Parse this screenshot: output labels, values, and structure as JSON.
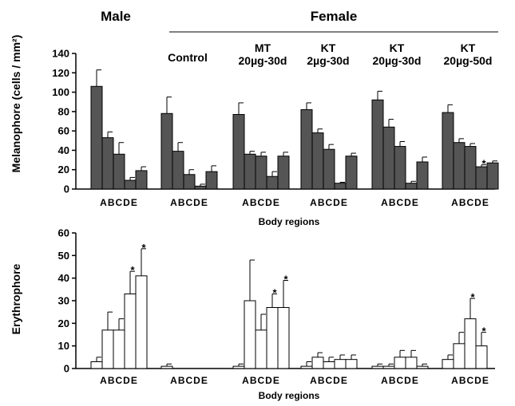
{
  "header": {
    "male": "Male",
    "female": "Female"
  },
  "groups": [
    {
      "id": "male",
      "line1": "",
      "line2": ""
    },
    {
      "id": "control",
      "line1": "Control",
      "line2": ""
    },
    {
      "id": "mt20_30",
      "line1": "MT",
      "line2": "20µg-30d"
    },
    {
      "id": "kt2_30",
      "line1": "KT",
      "line2": "2µg-30d"
    },
    {
      "id": "kt20_30",
      "line1": "KT",
      "line2": "20µg-30d"
    },
    {
      "id": "kt20_50",
      "line1": "KT",
      "line2": "20µg-50d"
    }
  ],
  "colors": {
    "dark_bar": "#555555",
    "light_bar": "#ffffff",
    "axis": "#000000"
  },
  "chart_data": [
    {
      "type": "bar",
      "title": "",
      "ylabel": "Melanophore (cells / mm²)",
      "xlabel": "Body regions",
      "ylim": [
        0,
        140
      ],
      "yticks": [
        0,
        20,
        40,
        60,
        80,
        100,
        120,
        140
      ],
      "categories": [
        "A",
        "B",
        "C",
        "D",
        "E"
      ],
      "bar_color": "#555555",
      "series": [
        {
          "group": "male",
          "values": [
            106,
            53,
            36,
            9,
            19
          ],
          "errors": [
            17,
            6,
            12,
            3,
            4
          ],
          "significant": [
            false,
            false,
            false,
            false,
            false
          ]
        },
        {
          "group": "control",
          "values": [
            78,
            39,
            15,
            3,
            18
          ],
          "errors": [
            17,
            9,
            5,
            2,
            6
          ],
          "significant": [
            false,
            false,
            false,
            false,
            false
          ]
        },
        {
          "group": "mt20_30",
          "values": [
            77,
            36,
            34,
            13,
            34
          ],
          "errors": [
            12,
            3,
            4,
            5,
            4
          ],
          "significant": [
            false,
            false,
            false,
            false,
            false
          ]
        },
        {
          "group": "kt2_30",
          "values": [
            82,
            58,
            41,
            6,
            34
          ],
          "errors": [
            7,
            4,
            5,
            1,
            3
          ],
          "significant": [
            false,
            false,
            false,
            false,
            false
          ]
        },
        {
          "group": "kt20_30",
          "values": [
            92,
            64,
            44,
            6,
            28
          ],
          "errors": [
            9,
            8,
            5,
            2,
            5
          ],
          "significant": [
            false,
            false,
            false,
            false,
            false
          ]
        },
        {
          "group": "kt20_50",
          "values": [
            79,
            48,
            44,
            23,
            27
          ],
          "errors": [
            8,
            4,
            3,
            2,
            2
          ],
          "significant": [
            false,
            false,
            false,
            true,
            false
          ]
        }
      ]
    },
    {
      "type": "bar",
      "title": "",
      "ylabel": "Erythrophore",
      "xlabel": "Body regions",
      "ylim": [
        0,
        60
      ],
      "yticks": [
        0,
        10,
        20,
        30,
        40,
        50,
        60
      ],
      "categories": [
        "A",
        "B",
        "C",
        "D",
        "E"
      ],
      "bar_color": "#ffffff",
      "series": [
        {
          "group": "male",
          "values": [
            3,
            17,
            17,
            33,
            41
          ],
          "errors": [
            2,
            8,
            5,
            10,
            12
          ],
          "significant": [
            false,
            false,
            false,
            true,
            true
          ]
        },
        {
          "group": "control",
          "values": [
            1,
            0,
            0,
            0,
            0
          ],
          "errors": [
            1,
            0,
            0,
            0,
            0
          ],
          "significant": [
            false,
            false,
            false,
            false,
            false
          ]
        },
        {
          "group": "mt20_30",
          "values": [
            1,
            30,
            17,
            27,
            27
          ],
          "errors": [
            1,
            18,
            7,
            6,
            12
          ],
          "significant": [
            false,
            false,
            false,
            true,
            true
          ]
        },
        {
          "group": "kt2_30",
          "values": [
            1,
            5,
            3,
            4,
            4
          ],
          "errors": [
            2,
            2,
            2,
            2,
            2
          ],
          "significant": [
            false,
            false,
            false,
            false,
            false
          ]
        },
        {
          "group": "kt20_30",
          "values": [
            1,
            1,
            5,
            5,
            1
          ],
          "errors": [
            1,
            1,
            3,
            3,
            1
          ],
          "significant": [
            false,
            false,
            false,
            false,
            false
          ]
        },
        {
          "group": "kt20_50",
          "values": [
            4,
            11,
            22,
            10,
            0
          ],
          "errors": [
            2,
            5,
            9,
            6,
            0
          ],
          "significant": [
            false,
            false,
            true,
            true,
            false
          ]
        }
      ]
    }
  ],
  "star_symbol": "*"
}
